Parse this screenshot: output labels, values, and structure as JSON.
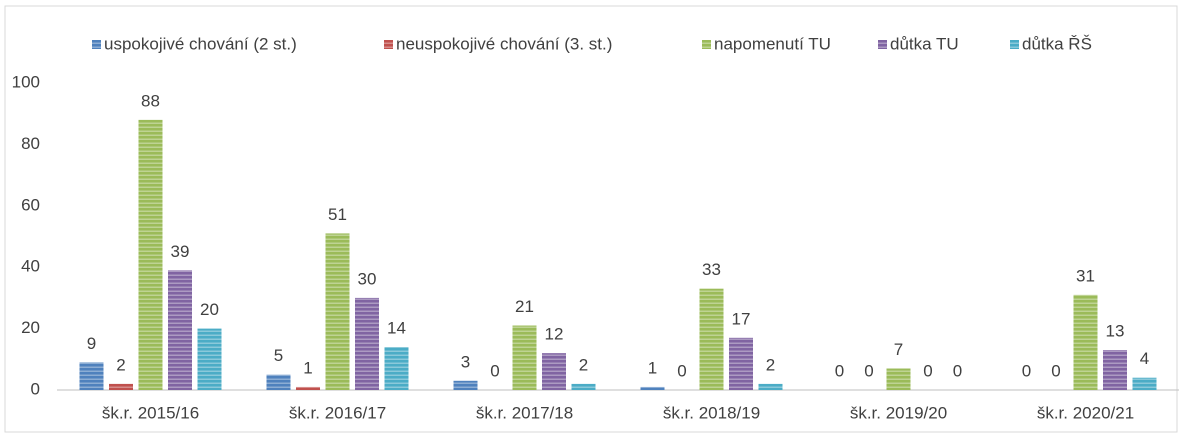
{
  "chart_data": {
    "type": "bar",
    "categories": [
      "šk.r. 2015/16",
      "šk.r. 2016/17",
      "šk.r. 2017/18",
      "šk.r. 2018/19",
      "šk.r. 2019/20",
      "šk.r. 2020/21"
    ],
    "series": [
      {
        "name": "uspokojivé chování (2 st.)",
        "color": "#4f81bd",
        "values": [
          9,
          5,
          3,
          1,
          0,
          0
        ]
      },
      {
        "name": "neuspokojivé chování (3. st.)",
        "color": "#c0504d",
        "values": [
          2,
          1,
          0,
          0,
          0,
          0
        ]
      },
      {
        "name": "napomenutí TU",
        "color": "#9bbb59",
        "values": [
          88,
          51,
          21,
          33,
          7,
          31
        ]
      },
      {
        "name": "důtka TU",
        "color": "#8064a2",
        "values": [
          39,
          30,
          12,
          17,
          0,
          13
        ]
      },
      {
        "name": "důtka ŘŠ",
        "color": "#4bacc6",
        "values": [
          20,
          14,
          2,
          2,
          0,
          4
        ]
      }
    ],
    "ylim": [
      0,
      100
    ],
    "yticks": [
      0,
      20,
      40,
      60,
      80,
      100
    ],
    "grid": false,
    "legend": "top"
  }
}
